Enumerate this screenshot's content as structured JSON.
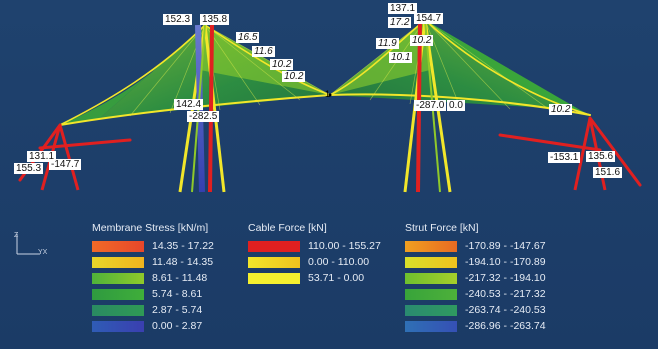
{
  "node_labels": [
    {
      "id": "n1",
      "text": "152.3",
      "italic": false
    },
    {
      "id": "n2",
      "text": "135.8",
      "italic": false
    },
    {
      "id": "n3",
      "text": "16.5",
      "italic": true
    },
    {
      "id": "n4",
      "text": "11.6",
      "italic": true
    },
    {
      "id": "n5",
      "text": "10.2",
      "italic": true
    },
    {
      "id": "n6",
      "text": "10.2",
      "italic": true
    },
    {
      "id": "n7",
      "text": "137.1",
      "italic": false
    },
    {
      "id": "n8",
      "text": "17.2",
      "italic": true
    },
    {
      "id": "n9",
      "text": "154.7",
      "italic": false
    },
    {
      "id": "n10",
      "text": "11.9",
      "italic": true
    },
    {
      "id": "n11",
      "text": "10.2",
      "italic": true
    },
    {
      "id": "n12",
      "text": "10.1",
      "italic": true
    },
    {
      "id": "n13",
      "text": "142.4",
      "italic": false
    },
    {
      "id": "n14",
      "text": "-282.5",
      "italic": false
    },
    {
      "id": "n15",
      "text": "-287.0",
      "italic": false
    },
    {
      "id": "n16",
      "text": "0.0",
      "italic": false
    },
    {
      "id": "n17",
      "text": "10.2",
      "italic": true
    },
    {
      "id": "n18",
      "text": "131.1",
      "italic": false
    },
    {
      "id": "n19",
      "text": "155.3",
      "italic": false
    },
    {
      "id": "n20",
      "text": "-147.7",
      "italic": false
    },
    {
      "id": "n21",
      "text": "-153.1",
      "italic": false
    },
    {
      "id": "n22",
      "text": "135.6",
      "italic": false
    },
    {
      "id": "n23",
      "text": "151.6",
      "italic": false
    }
  ],
  "center_marker": "1",
  "axis": {
    "z": "Z",
    "yx": "YX"
  },
  "legends": [
    {
      "title": "Membrane Stress [kN/m]",
      "rows": [
        {
          "range": "14.35 - 17.22",
          "color": "#e8472a"
        },
        {
          "range": "11.48 - 14.35",
          "color": "#f0b41e"
        },
        {
          "range": "8.61 - 11.48",
          "color": "#8fc92a"
        },
        {
          "range": "5.74 - 8.61",
          "color": "#3fae3a"
        },
        {
          "range": "2.87 - 5.74",
          "color": "#2f9a55"
        },
        {
          "range": "0.00 - 2.87",
          "color": "#3a3fb0"
        }
      ]
    },
    {
      "title": "Cable Force [kN]",
      "rows": [
        {
          "range": "110.00 - 155.27",
          "color": "#e02020"
        },
        {
          "range": "0.00 - 110.00",
          "color": "#f2e62a"
        },
        {
          "range": "53.71 - 0.00",
          "color": "#f5f02e"
        }
      ]
    },
    {
      "title": "Strut Force [kN]",
      "rows": [
        {
          "range": "-170.89 - -147.67",
          "color": "#e86a22"
        },
        {
          "range": "-194.10 - -170.89",
          "color": "#f0c21e"
        },
        {
          "range": "-217.32 - -194.10",
          "color": "#a6cf2a"
        },
        {
          "range": "-240.53 - -217.32",
          "color": "#4db03a"
        },
        {
          "range": "-263.74 - -240.53",
          "color": "#2f9a60"
        },
        {
          "range": "-286.96 - -263.74",
          "color": "#3550b5"
        }
      ]
    }
  ]
}
